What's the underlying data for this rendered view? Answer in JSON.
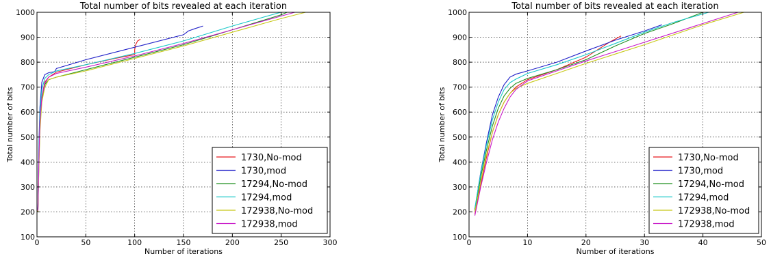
{
  "chart_data": [
    {
      "type": "line",
      "title": "Total number of bits revealed at each iteration",
      "xlabel": "Number of iterations",
      "ylabel": "Total number of bits",
      "xlim": [
        0,
        300
      ],
      "ylim": [
        100,
        1000
      ],
      "xticks": [
        "0",
        "50",
        "100",
        "150",
        "200",
        "250",
        "300"
      ],
      "yticks": [
        "100",
        "200",
        "300",
        "400",
        "500",
        "600",
        "700",
        "800",
        "900",
        "1000"
      ],
      "grid": true,
      "legend_position": "bottom-right",
      "series": [
        {
          "name": "1730,No-mod",
          "color": "#e8171c",
          "points": [
            [
              1,
              200
            ],
            [
              2,
              420
            ],
            [
              3,
              560
            ],
            [
              5,
              660
            ],
            [
              8,
              720
            ],
            [
              12,
              740
            ],
            [
              20,
              760
            ],
            [
              50,
              790
            ],
            [
              80,
              815
            ],
            [
              100,
              830
            ],
            [
              100,
              850
            ],
            [
              101,
              870
            ],
            [
              103,
              885
            ],
            [
              106,
              892
            ]
          ]
        },
        {
          "name": "1730,mod",
          "color": "#2020c8",
          "points": [
            [
              1,
              210
            ],
            [
              2,
              480
            ],
            [
              3,
              620
            ],
            [
              5,
              720
            ],
            [
              8,
              750
            ],
            [
              12,
              758
            ],
            [
              18,
              762
            ],
            [
              20,
              775
            ],
            [
              50,
              810
            ],
            [
              100,
              860
            ],
            [
              150,
              910
            ],
            [
              155,
              925
            ],
            [
              162,
              935
            ],
            [
              170,
              945
            ]
          ]
        },
        {
          "name": "17294,No-mod",
          "color": "#1f8f1f",
          "points": [
            [
              1,
              200
            ],
            [
              2,
              400
            ],
            [
              3,
              540
            ],
            [
              5,
              650
            ],
            [
              8,
              710
            ],
            [
              12,
              730
            ],
            [
              20,
              740
            ],
            [
              50,
              770
            ],
            [
              100,
              820
            ],
            [
              150,
              870
            ],
            [
              200,
              930
            ],
            [
              250,
              990
            ],
            [
              256,
              1000
            ]
          ]
        },
        {
          "name": "17294,mod",
          "color": "#18c8c8",
          "points": [
            [
              1,
              210
            ],
            [
              2,
              450
            ],
            [
              3,
              600
            ],
            [
              5,
              690
            ],
            [
              8,
              735
            ],
            [
              12,
              750
            ],
            [
              20,
              765
            ],
            [
              50,
              790
            ],
            [
              100,
              835
            ],
            [
              150,
              885
            ],
            [
              200,
              945
            ],
            [
              245,
              995
            ],
            [
              250,
              1000
            ]
          ]
        },
        {
          "name": "172938,No-mod",
          "color": "#c8c818",
          "points": [
            [
              1,
              200
            ],
            [
              2,
              380
            ],
            [
              3,
              520
            ],
            [
              5,
              640
            ],
            [
              8,
              700
            ],
            [
              12,
              730
            ],
            [
              20,
              740
            ],
            [
              50,
              765
            ],
            [
              100,
              815
            ],
            [
              150,
              865
            ],
            [
              200,
              920
            ],
            [
              250,
              975
            ],
            [
              275,
              1000
            ]
          ]
        },
        {
          "name": "172938,mod",
          "color": "#c818c8",
          "points": [
            [
              1,
              205
            ],
            [
              2,
              420
            ],
            [
              3,
              560
            ],
            [
              5,
              660
            ],
            [
              8,
              715
            ],
            [
              12,
              740
            ],
            [
              20,
              755
            ],
            [
              50,
              780
            ],
            [
              100,
              825
            ],
            [
              150,
              875
            ],
            [
              200,
              930
            ],
            [
              250,
              985
            ],
            [
              264,
              1000
            ]
          ]
        }
      ]
    },
    {
      "type": "line",
      "title": "Total number of bits revealed at each iteration",
      "xlabel": "Number of iterations",
      "ylabel": "Total number of bits",
      "xlim": [
        0,
        50
      ],
      "ylim": [
        100,
        1000
      ],
      "xticks": [
        "0",
        "10",
        "20",
        "30",
        "40",
        "50"
      ],
      "yticks": [
        "100",
        "200",
        "300",
        "400",
        "500",
        "600",
        "700",
        "800",
        "900",
        "1000"
      ],
      "grid": true,
      "legend_position": "bottom-right",
      "series": [
        {
          "name": "1730,No-mod",
          "color": "#e8171c",
          "points": [
            [
              1,
              190
            ],
            [
              2,
              310
            ],
            [
              3,
              420
            ],
            [
              4,
              520
            ],
            [
              5,
              590
            ],
            [
              6,
              640
            ],
            [
              7,
              675
            ],
            [
              8,
              700
            ],
            [
              10,
              730
            ],
            [
              15,
              770
            ],
            [
              20,
              820
            ],
            [
              22,
              850
            ],
            [
              24,
              880
            ],
            [
              26,
              905
            ]
          ]
        },
        {
          "name": "1730,mod",
          "color": "#2020c8",
          "points": [
            [
              1,
              210
            ],
            [
              2,
              360
            ],
            [
              3,
              480
            ],
            [
              4,
              590
            ],
            [
              5,
              660
            ],
            [
              6,
              710
            ],
            [
              7,
              740
            ],
            [
              8,
              752
            ],
            [
              10,
              765
            ],
            [
              15,
              800
            ],
            [
              20,
              845
            ],
            [
              25,
              888
            ],
            [
              30,
              925
            ],
            [
              33,
              950
            ]
          ]
        },
        {
          "name": "17294,No-mod",
          "color": "#1f8f1f",
          "points": [
            [
              1,
              205
            ],
            [
              2,
              340
            ],
            [
              3,
              450
            ],
            [
              4,
              545
            ],
            [
              5,
              615
            ],
            [
              6,
              665
            ],
            [
              7,
              695
            ],
            [
              8,
              715
            ],
            [
              10,
              735
            ],
            [
              15,
              770
            ],
            [
              20,
              810
            ],
            [
              25,
              865
            ],
            [
              30,
              915
            ],
            [
              35,
              955
            ],
            [
              40,
              1000
            ]
          ]
        },
        {
          "name": "17294,mod",
          "color": "#18c8c8",
          "points": [
            [
              1,
              215
            ],
            [
              2,
              355
            ],
            [
              3,
              470
            ],
            [
              4,
              570
            ],
            [
              5,
              640
            ],
            [
              6,
              690
            ],
            [
              7,
              718
            ],
            [
              8,
              732
            ],
            [
              10,
              755
            ],
            [
              15,
              790
            ],
            [
              20,
              830
            ],
            [
              25,
              875
            ],
            [
              30,
              920
            ],
            [
              35,
              960
            ],
            [
              41,
              1000
            ]
          ]
        },
        {
          "name": "172938,No-mod",
          "color": "#c8c818",
          "points": [
            [
              1,
              200
            ],
            [
              2,
              320
            ],
            [
              3,
              430
            ],
            [
              4,
              520
            ],
            [
              5,
              590
            ],
            [
              6,
              640
            ],
            [
              7,
              675
            ],
            [
              8,
              695
            ],
            [
              10,
              715
            ],
            [
              15,
              755
            ],
            [
              20,
              795
            ],
            [
              30,
              870
            ],
            [
              40,
              950
            ],
            [
              47,
              1000
            ]
          ]
        },
        {
          "name": "172938,mod",
          "color": "#c818c8",
          "points": [
            [
              1,
              185
            ],
            [
              2,
              300
            ],
            [
              3,
              400
            ],
            [
              4,
              490
            ],
            [
              5,
              560
            ],
            [
              6,
              615
            ],
            [
              7,
              660
            ],
            [
              8,
              690
            ],
            [
              10,
              725
            ],
            [
              15,
              765
            ],
            [
              20,
              805
            ],
            [
              30,
              880
            ],
            [
              40,
              955
            ],
            [
              46,
              1000
            ]
          ]
        }
      ]
    }
  ]
}
